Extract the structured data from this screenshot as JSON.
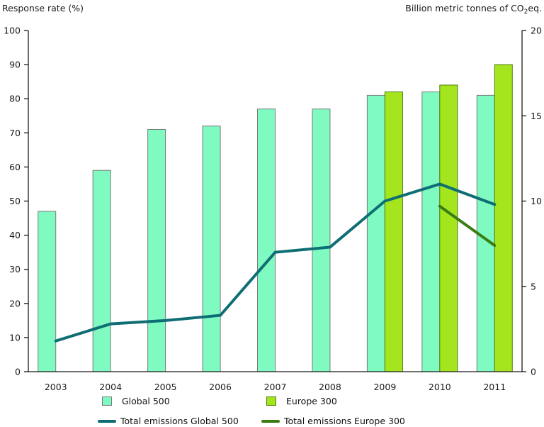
{
  "chart_data": {
    "type": "bar+line",
    "categories": [
      "2003",
      "2004",
      "2005",
      "2006",
      "2007",
      "2008",
      "2009",
      "2010",
      "2011"
    ],
    "bar_series": [
      {
        "name": "Global 500",
        "axis": "left",
        "fill": "#7ffac1",
        "stroke": "#7a7a7a",
        "values": [
          47,
          59,
          71,
          72,
          77,
          77,
          81,
          82,
          81
        ]
      },
      {
        "name": "Europe 300",
        "axis": "left",
        "fill": "#a4e51d",
        "stroke": "#4e7a12",
        "values": [
          null,
          null,
          null,
          null,
          null,
          null,
          82,
          84,
          90
        ]
      }
    ],
    "line_series": [
      {
        "name": "Total emissions Global 500",
        "axis": "right",
        "color": "#0e6e74",
        "values": [
          1.8,
          2.8,
          3.0,
          3.3,
          7.0,
          7.3,
          10.0,
          11.0,
          9.8
        ]
      },
      {
        "name": "Total emissions Europe 300",
        "axis": "right",
        "color": "#3b7d11",
        "values": [
          null,
          null,
          null,
          null,
          null,
          null,
          null,
          9.7,
          7.4
        ]
      }
    ],
    "left_axis": {
      "title": "Response rate (%)",
      "min": 0,
      "max": 100,
      "step": 10
    },
    "right_axis": {
      "title_pre": "Billion metric tonnes of CO",
      "title_sub": "2",
      "title_post": "eq.",
      "min": 0,
      "max": 20,
      "step": 5
    },
    "grid": false,
    "legend_position": "bottom"
  }
}
